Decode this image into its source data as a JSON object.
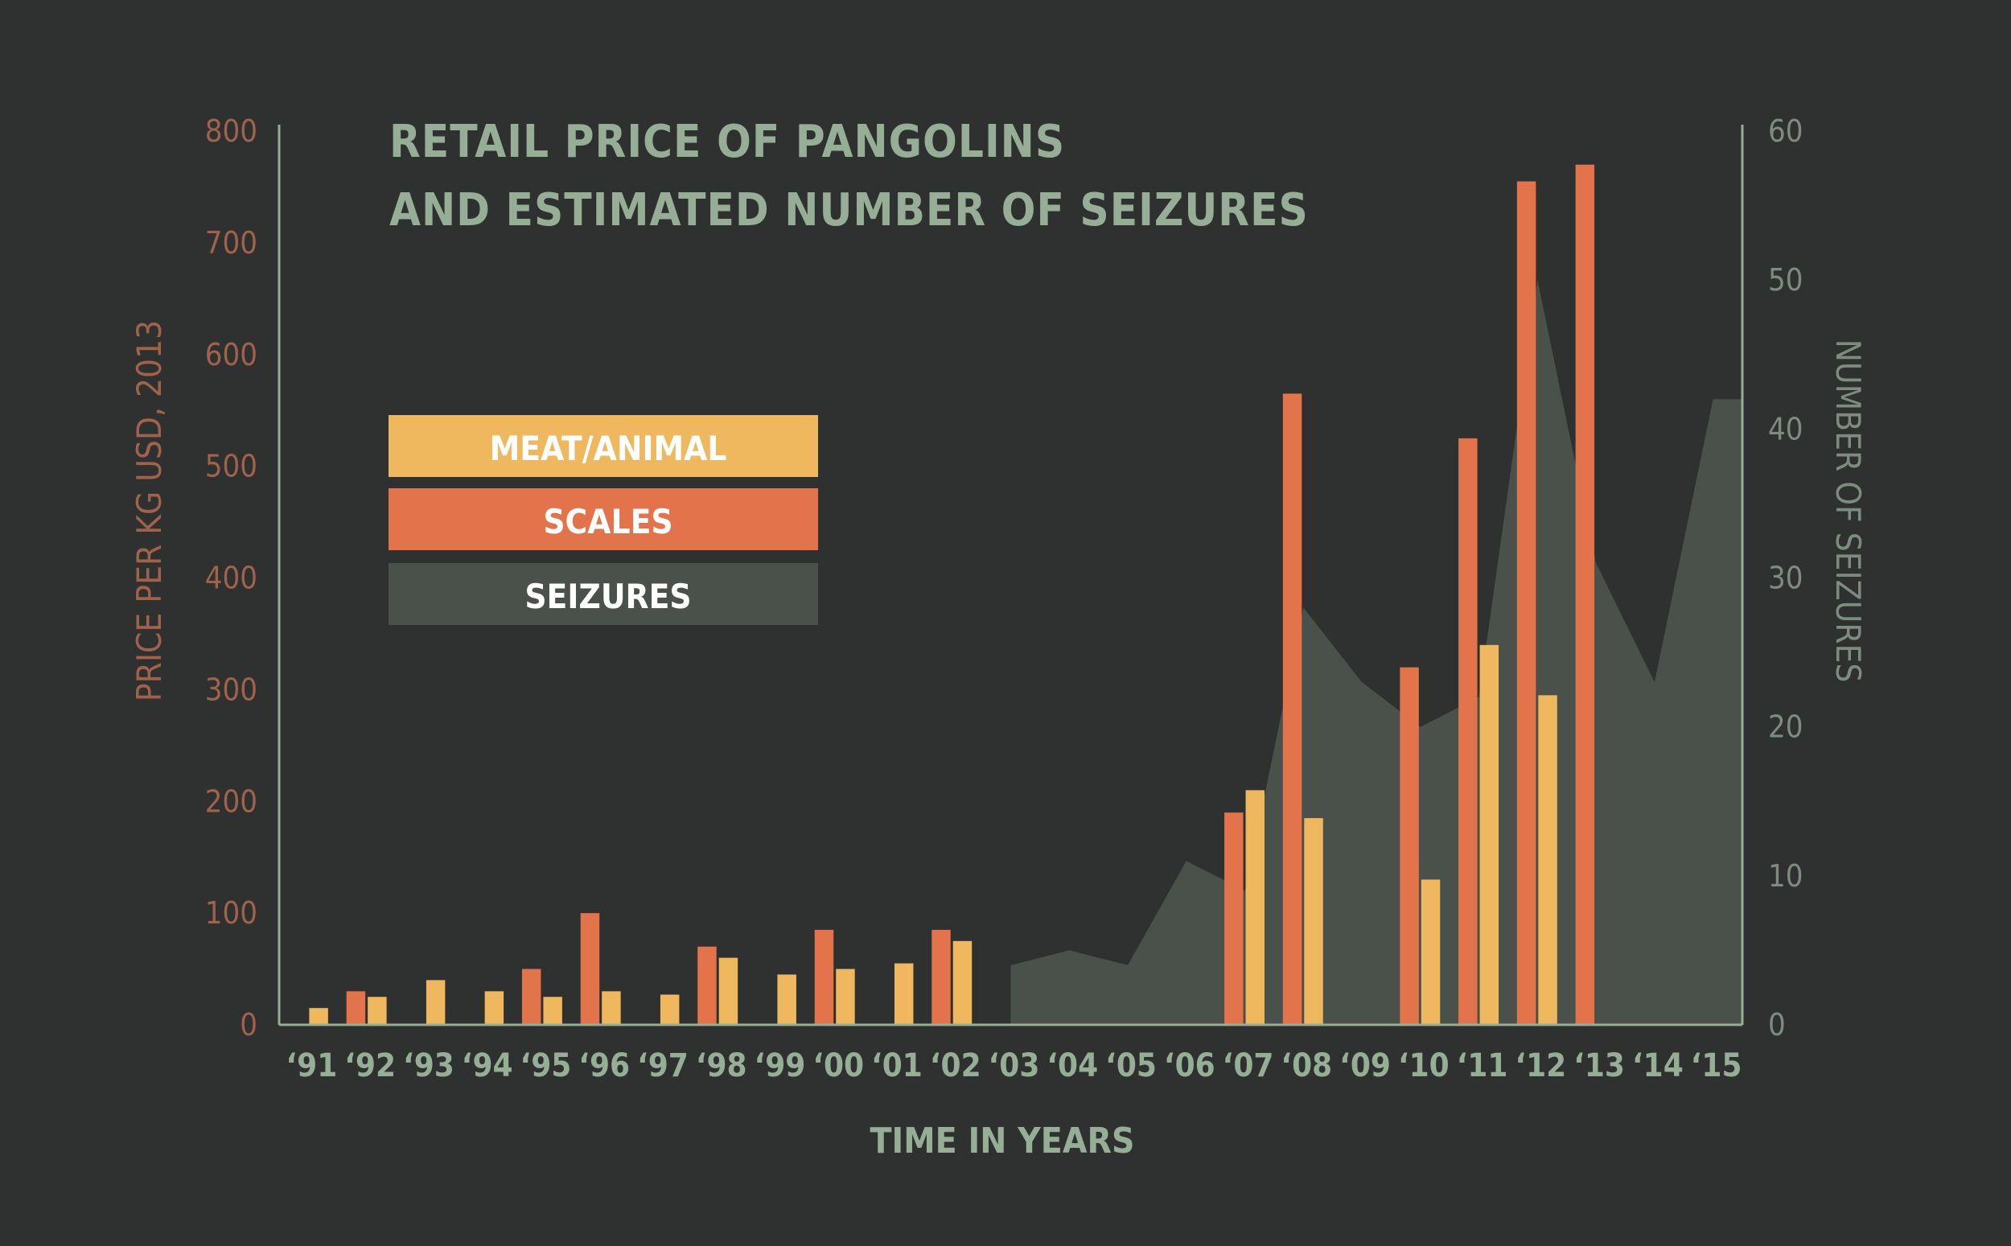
{
  "chart_data": {
    "type": "bar",
    "title_lines": [
      "RETAIL PRICE OF PANGOLINS",
      "AND ESTIMATED NUMBER OF SEIZURES"
    ],
    "xlabel": "TIME IN YEARS",
    "ylabel_left": "PRICE PER KG USD, 2013",
    "ylabel_right": "NUMBER OF SEIZURES",
    "categories": [
      "‘91",
      "‘92",
      "‘93",
      "‘94",
      "‘95",
      "‘96",
      "‘97",
      "‘98",
      "‘99",
      "‘00",
      "‘01",
      "‘02",
      "‘03",
      "‘04",
      "‘05",
      "‘06",
      "‘07",
      "‘08",
      "‘09",
      "‘10",
      "‘11",
      "‘12",
      "‘13",
      "‘14",
      "‘15"
    ],
    "ylim_left": [
      0,
      800
    ],
    "yticks_left": [
      "0",
      "100",
      "200",
      "300",
      "400",
      "500",
      "600",
      "700",
      "800"
    ],
    "ylim_right": [
      0,
      60
    ],
    "yticks_right": [
      "0",
      "10",
      "20",
      "30",
      "40",
      "50",
      "60"
    ],
    "legend_position": "top-left",
    "grid": false,
    "series": [
      {
        "name": "SCALES",
        "kind": "bar",
        "axis": "left",
        "color": "#e2734a",
        "values": [
          null,
          30,
          null,
          null,
          50,
          100,
          null,
          70,
          null,
          85,
          null,
          85,
          null,
          null,
          null,
          null,
          190,
          565,
          null,
          320,
          525,
          755,
          770,
          null,
          null
        ]
      },
      {
        "name": "MEAT/ANIMAL",
        "kind": "bar",
        "axis": "left",
        "color": "#efb85f",
        "values": [
          15,
          25,
          40,
          30,
          25,
          30,
          27,
          60,
          45,
          50,
          55,
          75,
          null,
          null,
          null,
          null,
          210,
          185,
          null,
          130,
          340,
          295,
          null,
          null,
          null
        ]
      },
      {
        "name": "SEIZURES",
        "kind": "area",
        "axis": "right",
        "color": "#4a514a",
        "values": [
          null,
          null,
          null,
          null,
          null,
          null,
          null,
          null,
          null,
          null,
          null,
          null,
          4,
          5,
          4,
          11,
          9,
          28,
          23,
          20,
          22,
          50,
          31,
          23,
          42
        ]
      }
    ],
    "colors": {
      "background": "#2f3130",
      "left_axis": "#a0624a",
      "right_axis": "#7e8c7f",
      "axis_line": "#96ae96",
      "title": "#96ae96"
    }
  }
}
